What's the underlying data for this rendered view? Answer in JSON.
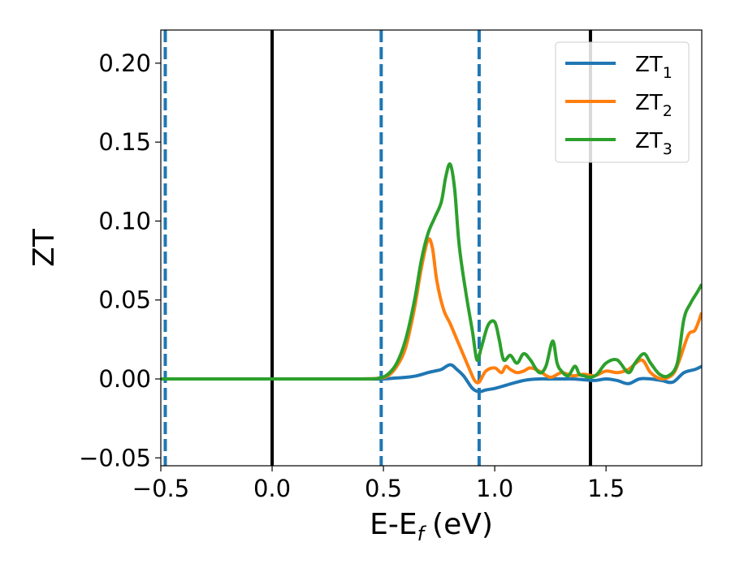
{
  "chart_data": {
    "type": "line",
    "xlabel": "E-E",
    "xlabel_sub": "f",
    "xlabel_unit": "(eV)",
    "ylabel": "ZT",
    "xlim": [
      -0.5,
      1.93
    ],
    "ylim": [
      -0.055,
      0.221
    ],
    "x_ticks": [
      -0.5,
      0.0,
      0.5,
      1.0,
      1.5
    ],
    "x_tick_labels": [
      "−0.5",
      "0.0",
      "0.5",
      "1.0",
      "1.5"
    ],
    "y_ticks": [
      -0.05,
      0.0,
      0.05,
      0.1,
      0.15,
      0.2
    ],
    "y_tick_labels": [
      "−0.05",
      "0.00",
      "0.05",
      "0.10",
      "0.15",
      "0.20"
    ],
    "grid": false,
    "legend_position": "top-right",
    "vlines_solid": [
      0.0,
      1.43
    ],
    "vlines_dashed": [
      -0.48,
      0.49,
      0.93
    ],
    "vline_solid_color": "#000000",
    "vline_dashed_color": "#1f77b4",
    "series": [
      {
        "name": "ZT",
        "sub": "1",
        "color": "#1f77b4",
        "x": [
          -0.5,
          0.0,
          0.4,
          0.5,
          0.55,
          0.6,
          0.65,
          0.7,
          0.73,
          0.76,
          0.8,
          0.83,
          0.86,
          0.9,
          0.93,
          0.96,
          1.0,
          1.05,
          1.1,
          1.15,
          1.2,
          1.25,
          1.3,
          1.35,
          1.4,
          1.45,
          1.5,
          1.55,
          1.6,
          1.65,
          1.7,
          1.75,
          1.8,
          1.85,
          1.9,
          1.93
        ],
        "values": [
          0.0,
          0.0,
          0.0,
          0.0,
          0.0005,
          0.001,
          0.002,
          0.004,
          0.005,
          0.006,
          0.009,
          0.006,
          0.002,
          -0.006,
          -0.008,
          -0.007,
          -0.006,
          -0.004,
          -0.002,
          -0.0005,
          0.0,
          0.0,
          0.0,
          0.0,
          -0.0005,
          -0.001,
          0.0,
          -0.001,
          -0.003,
          0.0,
          0.0,
          -0.001,
          -0.002,
          0.004,
          0.006,
          0.008
        ]
      },
      {
        "name": "ZT",
        "sub": "2",
        "color": "#ff7f0e",
        "x": [
          -0.5,
          0.0,
          0.4,
          0.48,
          0.52,
          0.56,
          0.6,
          0.64,
          0.67,
          0.7,
          0.72,
          0.74,
          0.77,
          0.8,
          0.83,
          0.86,
          0.89,
          0.91,
          0.93,
          0.96,
          1.0,
          1.03,
          1.05,
          1.07,
          1.1,
          1.13,
          1.16,
          1.2,
          1.25,
          1.3,
          1.35,
          1.4,
          1.45,
          1.5,
          1.55,
          1.6,
          1.66,
          1.7,
          1.75,
          1.8,
          1.83,
          1.87,
          1.9,
          1.93
        ],
        "values": [
          0.0,
          0.0,
          0.0,
          0.0005,
          0.002,
          0.008,
          0.02,
          0.045,
          0.07,
          0.088,
          0.083,
          0.062,
          0.044,
          0.035,
          0.025,
          0.015,
          0.005,
          -0.001,
          -0.002,
          0.005,
          0.007,
          0.004,
          0.008,
          0.006,
          0.004,
          0.005,
          0.007,
          0.005,
          0.001,
          0.004,
          0.002,
          0.003,
          0.002,
          0.005,
          0.004,
          0.006,
          0.012,
          0.004,
          0.0,
          0.003,
          0.012,
          0.028,
          0.031,
          0.042
        ]
      },
      {
        "name": "ZT",
        "sub": "3",
        "color": "#2ca02c",
        "x": [
          -0.5,
          0.0,
          0.4,
          0.48,
          0.52,
          0.56,
          0.6,
          0.64,
          0.67,
          0.7,
          0.73,
          0.76,
          0.78,
          0.8,
          0.82,
          0.84,
          0.87,
          0.9,
          0.92,
          0.94,
          0.97,
          1.0,
          1.02,
          1.04,
          1.07,
          1.1,
          1.13,
          1.16,
          1.2,
          1.23,
          1.26,
          1.28,
          1.3,
          1.33,
          1.36,
          1.38,
          1.4,
          1.43,
          1.46,
          1.5,
          1.55,
          1.6,
          1.63,
          1.67,
          1.7,
          1.74,
          1.78,
          1.82,
          1.85,
          1.88,
          1.91,
          1.93
        ],
        "values": [
          0.0,
          0.0,
          0.0,
          0.0005,
          0.003,
          0.01,
          0.025,
          0.05,
          0.075,
          0.092,
          0.102,
          0.112,
          0.128,
          0.136,
          0.12,
          0.085,
          0.055,
          0.03,
          0.012,
          0.02,
          0.034,
          0.036,
          0.025,
          0.012,
          0.015,
          0.01,
          0.016,
          0.012,
          0.004,
          0.008,
          0.024,
          0.01,
          0.005,
          0.002,
          0.008,
          0.003,
          0.002,
          0.001,
          0.003,
          0.01,
          0.012,
          0.004,
          0.01,
          0.016,
          0.01,
          0.003,
          0.002,
          0.01,
          0.038,
          0.048,
          0.055,
          0.06
        ]
      }
    ]
  }
}
